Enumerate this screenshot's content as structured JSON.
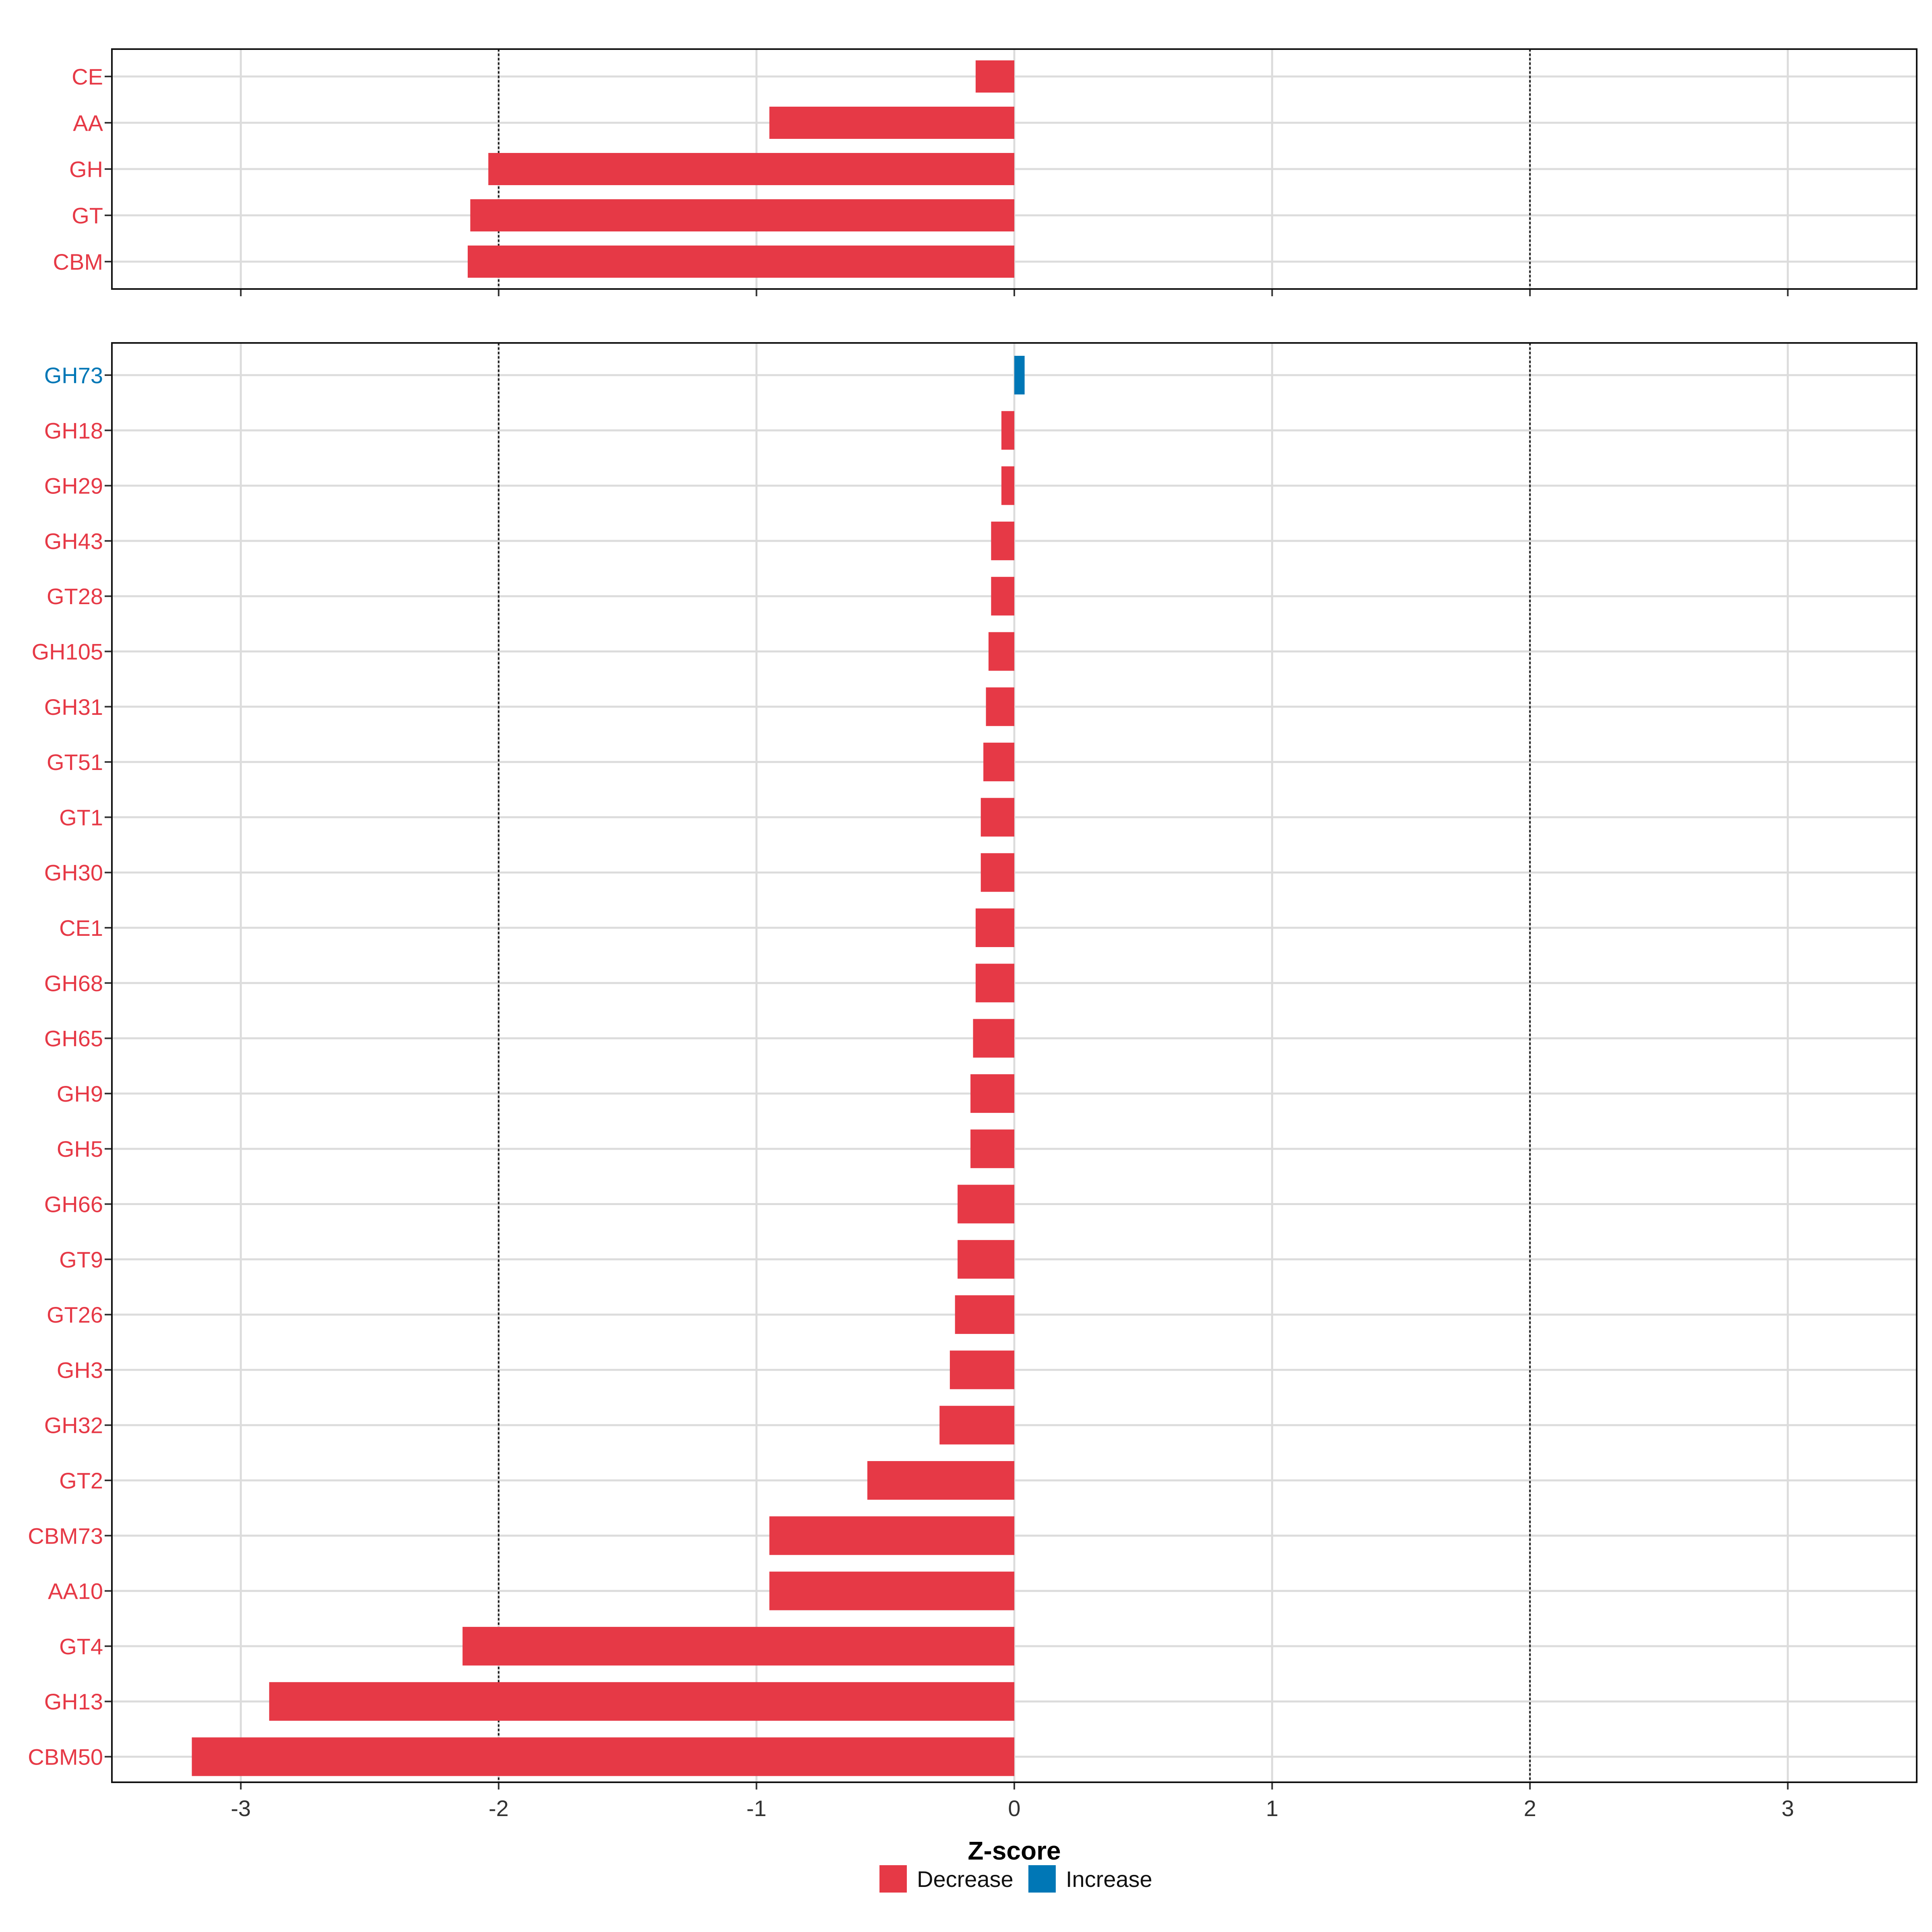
{
  "chart_data": {
    "type": "bar",
    "orientation": "horizontal",
    "xlabel": "Z-score",
    "xlim": [
      -3.5,
      3.5
    ],
    "x_ticks": [
      -3,
      -2,
      -1,
      0,
      1,
      2,
      3
    ],
    "x_tick_labels": [
      "-3",
      "-2",
      "-1",
      "0",
      "1",
      "2",
      "3"
    ],
    "reference_lines": [
      -2,
      2
    ],
    "grid": true,
    "legend": {
      "position": "bottom",
      "entries": [
        {
          "label": "Decrease",
          "color": "#E63946"
        },
        {
          "label": "Increase",
          "color": "#0077B6"
        }
      ]
    },
    "panels": [
      {
        "categories": [
          "CE",
          "AA",
          "GH",
          "GT",
          "CBM"
        ],
        "values": [
          -0.15,
          -0.95,
          -2.04,
          -2.11,
          -2.12
        ],
        "direction": [
          "Decrease",
          "Decrease",
          "Decrease",
          "Decrease",
          "Decrease"
        ]
      },
      {
        "categories": [
          "GH73",
          "GH18",
          "GH29",
          "GH43",
          "GT28",
          "GH105",
          "GH31",
          "GT51",
          "GT1",
          "GH30",
          "CE1",
          "GH68",
          "GH65",
          "GH9",
          "GH5",
          "GH66",
          "GT9",
          "GT26",
          "GH3",
          "GH32",
          "GT2",
          "CBM73",
          "AA10",
          "GT4",
          "GH13",
          "CBM50"
        ],
        "values": [
          0.04,
          -0.05,
          -0.05,
          -0.09,
          -0.09,
          -0.1,
          -0.11,
          -0.12,
          -0.13,
          -0.13,
          -0.15,
          -0.15,
          -0.16,
          -0.17,
          -0.17,
          -0.22,
          -0.22,
          -0.23,
          -0.25,
          -0.29,
          -0.57,
          -0.95,
          -0.95,
          -2.14,
          -2.89,
          -3.19
        ],
        "direction": [
          "Increase",
          "Decrease",
          "Decrease",
          "Decrease",
          "Decrease",
          "Decrease",
          "Decrease",
          "Decrease",
          "Decrease",
          "Decrease",
          "Decrease",
          "Decrease",
          "Decrease",
          "Decrease",
          "Decrease",
          "Decrease",
          "Decrease",
          "Decrease",
          "Decrease",
          "Decrease",
          "Decrease",
          "Decrease",
          "Decrease",
          "Decrease",
          "Decrease",
          "Decrease"
        ]
      }
    ]
  }
}
